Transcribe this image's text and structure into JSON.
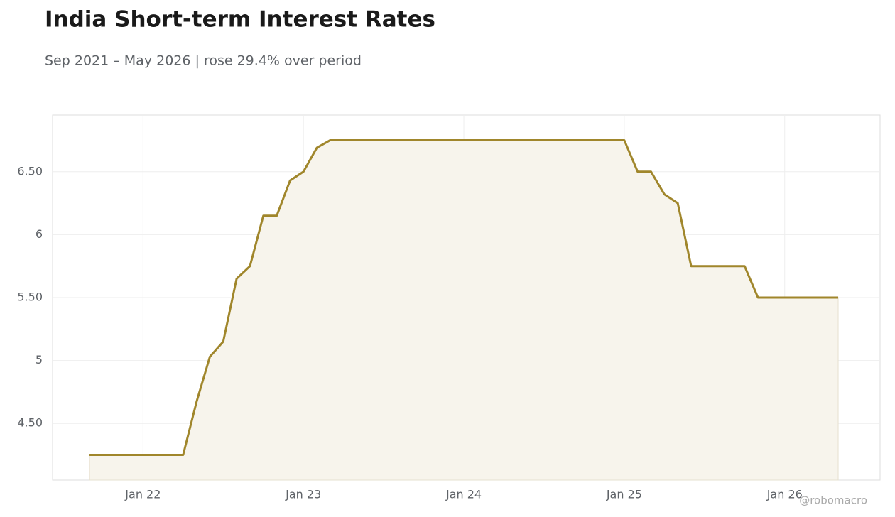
{
  "chart_data": {
    "type": "area-line",
    "title": "India Short-term Interest Rates",
    "subtitle": "Sep 2021 – May 2026 | rose 29.4% over period",
    "watermark": "@robomacro",
    "x": [
      "2021-09",
      "2021-10",
      "2021-11",
      "2021-12",
      "2022-01",
      "2022-02",
      "2022-03",
      "2022-04",
      "2022-05",
      "2022-06",
      "2022-07",
      "2022-08",
      "2022-09",
      "2022-10",
      "2022-11",
      "2022-12",
      "2023-01",
      "2023-02",
      "2023-03",
      "2023-04",
      "2023-05",
      "2023-06",
      "2023-07",
      "2023-08",
      "2023-09",
      "2023-10",
      "2023-11",
      "2023-12",
      "2024-01",
      "2024-02",
      "2024-03",
      "2024-04",
      "2024-05",
      "2024-06",
      "2024-07",
      "2024-08",
      "2024-09",
      "2024-10",
      "2024-11",
      "2024-12",
      "2025-01",
      "2025-02",
      "2025-03",
      "2025-04",
      "2025-05",
      "2025-06",
      "2025-07",
      "2025-08",
      "2025-09",
      "2025-10",
      "2025-11",
      "2025-12",
      "2026-01",
      "2026-02",
      "2026-03",
      "2026-04",
      "2026-05"
    ],
    "series": [
      {
        "color": "#a0862b",
        "fill": "#f7f4ec",
        "values": [
          4.25,
          4.25,
          4.25,
          4.25,
          4.25,
          4.25,
          4.25,
          4.25,
          4.67,
          5.03,
          5.15,
          5.65,
          5.75,
          6.15,
          6.15,
          6.43,
          6.5,
          6.69,
          6.75,
          6.75,
          6.75,
          6.75,
          6.75,
          6.75,
          6.75,
          6.75,
          6.75,
          6.75,
          6.75,
          6.75,
          6.75,
          6.75,
          6.75,
          6.75,
          6.75,
          6.75,
          6.75,
          6.75,
          6.75,
          6.75,
          6.75,
          6.5,
          6.5,
          6.32,
          6.25,
          5.75,
          5.75,
          5.75,
          5.75,
          5.75,
          5.5,
          5.5,
          5.5,
          5.5,
          5.5,
          5.5,
          5.5
        ]
      }
    ],
    "xlim": [
      "2021-06-08",
      "2026-08-05"
    ],
    "xticks": [
      {
        "value": "2022-01",
        "label": "Jan 22"
      },
      {
        "value": "2023-01",
        "label": "Jan 23"
      },
      {
        "value": "2024-01",
        "label": "Jan 24"
      },
      {
        "value": "2025-01",
        "label": "Jan 25"
      },
      {
        "value": "2026-01",
        "label": "Jan 26"
      }
    ],
    "ylim": [
      4.05,
      6.95
    ],
    "yticks": [
      {
        "value": 4.5,
        "label": "4.50"
      },
      5,
      {
        "value": 5.5,
        "label": "5.50"
      },
      6,
      {
        "value": 6.5,
        "label": "6.50"
      }
    ],
    "grid": true
  }
}
